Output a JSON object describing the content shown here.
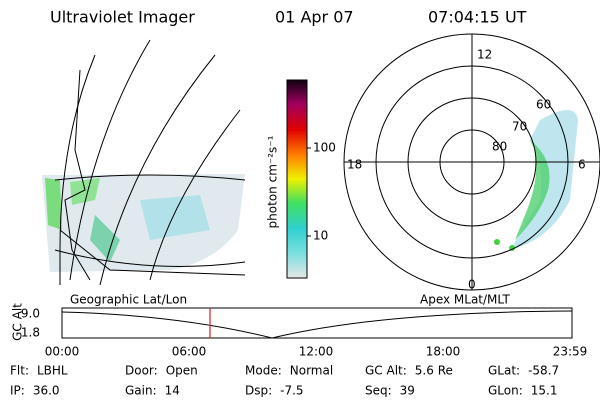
{
  "header": {
    "title": "Ultraviolet Imager",
    "date": "01 Apr 07",
    "time": "07:04:15 UT"
  },
  "colorbar": {
    "label": "photon cm⁻²s⁻¹",
    "ticks": [
      "100",
      "10"
    ]
  },
  "polar": {
    "mlt_labels": [
      "12",
      "18",
      "6",
      "0"
    ],
    "lat_labels": [
      "80",
      "70",
      "60"
    ]
  },
  "timeline": {
    "left_label": "Geographic Lat/Lon",
    "right_label": "Apex MLat/MLT",
    "axis_label": "GC Alt",
    "yticks": [
      "9.0",
      "1.8"
    ],
    "xticks": [
      "00:00",
      "06:00",
      "12:00",
      "18:00",
      "23:59"
    ]
  },
  "footer": {
    "rows": [
      [
        {
          "label": "Flt:",
          "value": "LBHL"
        },
        {
          "label": "Door:",
          "value": "Open"
        },
        {
          "label": "Mode:",
          "value": "Normal"
        },
        {
          "label": "GC Alt:",
          "value": "5.6 Re"
        },
        {
          "label": "GLat:",
          "value": "-58.7"
        }
      ],
      [
        {
          "label": "IP:",
          "value": "36.0"
        },
        {
          "label": "Gain:",
          "value": "14"
        },
        {
          "label": "Dsp:",
          "value": "-7.5"
        },
        {
          "label": "Seq:",
          "value": "39"
        },
        {
          "label": "GLon:",
          "value": "15.1"
        }
      ]
    ]
  }
}
